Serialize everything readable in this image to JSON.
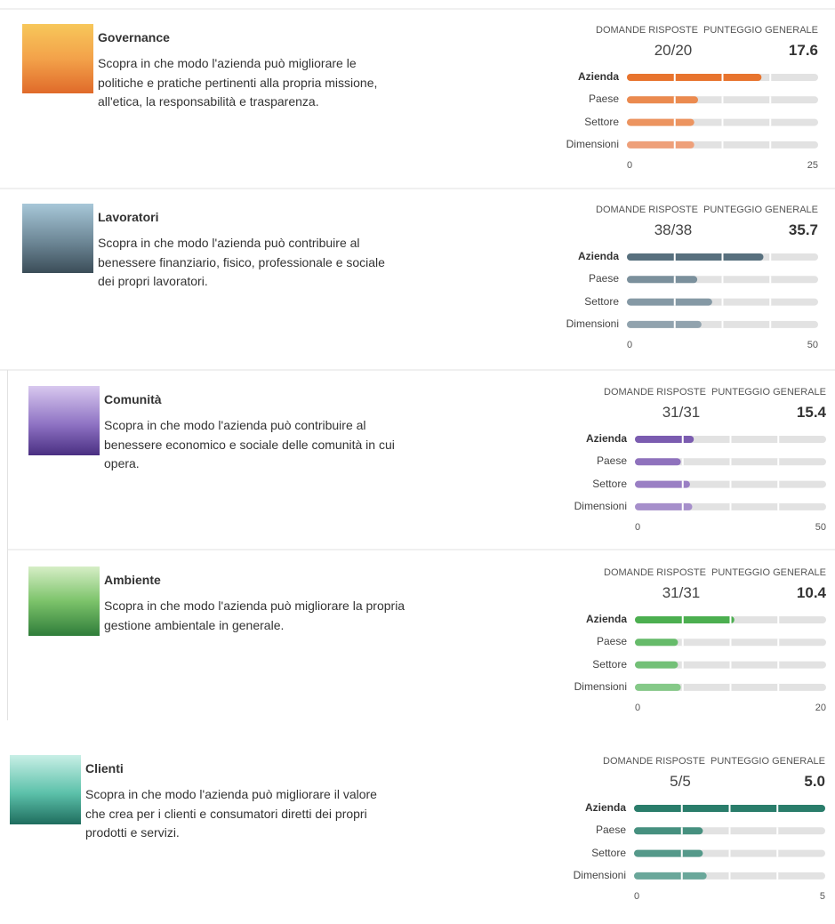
{
  "sections": [
    {
      "title": "Governance",
      "description": "Scopra in che modo l'azienda può migliorare le politiche e pratiche pertinenti alla propria missione, all'etica, la responsabilità e trasparenza.",
      "answered_header": "DOMANDE RISPOSTE",
      "score_header": "PUNTEGGIO GENERALE",
      "answered": "20/20",
      "score": 17.6,
      "rows": [
        {
          "label": "Azienda",
          "color": "#e8742e"
        },
        {
          "label": "Paese",
          "value": 9.3,
          "color": "#eb8a4f"
        },
        {
          "label": "Settore",
          "value": 8.8,
          "color": "#ec9460"
        },
        {
          "label": "Dimensioni",
          "value": 8.8,
          "color": "#eea07a"
        }
      ],
      "xlim": [
        0,
        25
      ],
      "xticks": [
        0,
        25
      ]
    },
    {
      "title": "Lavoratori",
      "description": "Scopra in che modo l'azienda può contribuire al benessere finanziario, fisico, professionale e sociale dei propri lavoratori.",
      "answered_header": "DOMANDE RISPOSTE",
      "score_header": "PUNTEGGIO GENERALE",
      "answered": "38/38",
      "score": 35.7,
      "rows": [
        {
          "label": "Azienda",
          "color": "#58707e"
        },
        {
          "label": "Paese",
          "value": 18.4,
          "color": "#7b909c"
        },
        {
          "label": "Settore",
          "value": 22.3,
          "color": "#8599a5"
        },
        {
          "label": "Dimensioni",
          "value": 19.5,
          "color": "#91a3ae"
        }
      ],
      "xlim": [
        0,
        50
      ],
      "xticks": [
        0,
        50
      ]
    },
    {
      "title": "Comunità",
      "description": "Scopra in che modo l'azienda può contribuire al benessere economico e sociale delle comunità in cui opera.",
      "answered_header": "DOMANDE RISPOSTE",
      "score_header": "PUNTEGGIO GENERALE",
      "answered": "31/31",
      "score": 15.4,
      "rows": [
        {
          "label": "Azienda",
          "color": "#7b5cb0"
        },
        {
          "label": "Paese",
          "value": 12.0,
          "color": "#8f72bd"
        },
        {
          "label": "Settore",
          "value": 14.4,
          "color": "#9a7fc4"
        },
        {
          "label": "Dimensioni",
          "value": 15.0,
          "color": "#a68fcb"
        }
      ],
      "xlim": [
        0,
        50
      ],
      "xticks": [
        0,
        50
      ]
    },
    {
      "title": "Ambiente",
      "description": "Scopra in che modo l'azienda può migliorare la propria gestione ambientale in generale.",
      "answered_header": "DOMANDE RISPOSTE",
      "score_header": "PUNTEGGIO GENERALE",
      "answered": "31/31",
      "score": 10.4,
      "rows": [
        {
          "label": "Azienda",
          "color": "#4caf50"
        },
        {
          "label": "Paese",
          "value": 4.5,
          "color": "#66bb6a"
        },
        {
          "label": "Settore",
          "value": 4.5,
          "color": "#73c077"
        },
        {
          "label": "Dimensioni",
          "value": 4.8,
          "color": "#85c988"
        }
      ],
      "xlim": [
        0,
        20
      ],
      "xticks": [
        0,
        20
      ]
    },
    {
      "title": "Clienti",
      "description": "Scopra in che modo l'azienda può migliorare il valore che crea per i clienti e consumatori diretti dei propri prodotti e servizi.",
      "answered_header": "DOMANDE RISPOSTE",
      "score_header": "PUNTEGGIO GENERALE",
      "answered": "5/5",
      "score": 5,
      "score_label": "5.0",
      "rows": [
        {
          "label": "Azienda",
          "color": "#2a7d6b"
        },
        {
          "label": "Paese",
          "value": 1.8,
          "color": "#46907f"
        },
        {
          "label": "Settore",
          "value": 1.8,
          "color": "#55998a"
        },
        {
          "label": "Dimensioni",
          "value": 1.9,
          "color": "#6aa79a"
        }
      ],
      "xlim": [
        0,
        5
      ],
      "xticks": [
        0,
        5
      ]
    }
  ]
}
